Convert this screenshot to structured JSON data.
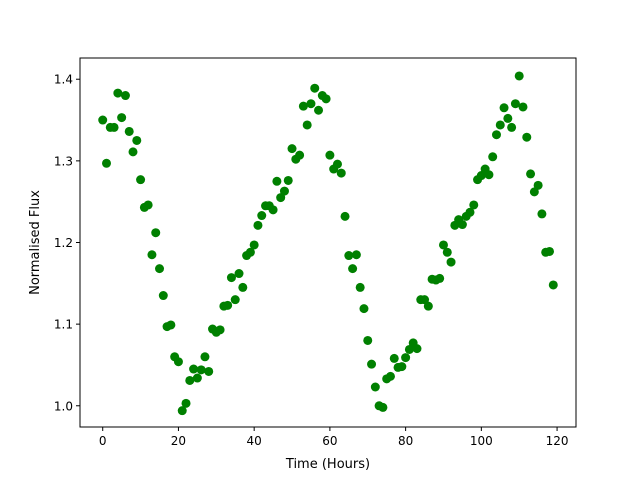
{
  "chart_data": {
    "type": "scatter",
    "title": "",
    "xlabel": "Time (Hours)",
    "ylabel": "Normalised Flux",
    "xlim": [
      -6,
      125
    ],
    "ylim": [
      0.974,
      1.426
    ],
    "xticks": [
      0,
      20,
      40,
      60,
      80,
      100,
      120
    ],
    "xtick_labels": [
      "0",
      "20",
      "40",
      "60",
      "80",
      "100",
      "120"
    ],
    "yticks": [
      1.0,
      1.1,
      1.2,
      1.3,
      1.4
    ],
    "ytick_labels": [
      "1.0",
      "1.1",
      "1.2",
      "1.3",
      "1.4"
    ],
    "grid": false,
    "legend": "none",
    "marker_color": "#008000",
    "series": [
      {
        "x": [
          0,
          1,
          2,
          3,
          4,
          5,
          6,
          7,
          8,
          9,
          10,
          11,
          12,
          13,
          14,
          15,
          16,
          17,
          18,
          19,
          20,
          21,
          22,
          23,
          24,
          25,
          26,
          27,
          28,
          29,
          30,
          31,
          32,
          33,
          34,
          35,
          36,
          37,
          38,
          39,
          40,
          41,
          42,
          43,
          44,
          45,
          46,
          47,
          48,
          49,
          50,
          51,
          52,
          53,
          54,
          55,
          56,
          57,
          58,
          59,
          60,
          61,
          62,
          63,
          64,
          65,
          66,
          67,
          68,
          69,
          70,
          71,
          72,
          73,
          74,
          75,
          76,
          77,
          78,
          79,
          80,
          81,
          82,
          83,
          84,
          85,
          86,
          87,
          88,
          89,
          90,
          91,
          92,
          93,
          94,
          95,
          96,
          97,
          98,
          99,
          100,
          101,
          102,
          103,
          104,
          105,
          106,
          107,
          108,
          109,
          110,
          111,
          112,
          113,
          114,
          115,
          116,
          117,
          118,
          119
        ],
        "y": [
          1.35,
          1.297,
          1.341,
          1.341,
          1.383,
          1.353,
          1.38,
          1.336,
          1.311,
          1.325,
          1.277,
          1.243,
          1.246,
          1.185,
          1.212,
          1.168,
          1.135,
          1.097,
          1.099,
          1.06,
          1.054,
          0.994,
          1.003,
          1.031,
          1.045,
          1.034,
          1.044,
          1.06,
          1.042,
          1.094,
          1.09,
          1.093,
          1.122,
          1.123,
          1.157,
          1.13,
          1.162,
          1.145,
          1.184,
          1.188,
          1.197,
          1.221,
          1.233,
          1.245,
          1.245,
          1.24,
          1.275,
          1.255,
          1.263,
          1.276,
          1.315,
          1.302,
          1.307,
          1.367,
          1.344,
          1.37,
          1.389,
          1.362,
          1.38,
          1.376,
          1.307,
          1.29,
          1.296,
          1.285,
          1.232,
          1.184,
          1.168,
          1.185,
          1.145,
          1.119,
          1.08,
          1.051,
          1.023,
          1.0,
          0.998,
          1.033,
          1.036,
          1.058,
          1.047,
          1.048,
          1.059,
          1.069,
          1.077,
          1.07,
          1.13,
          1.13,
          1.122,
          1.155,
          1.154,
          1.156,
          1.197,
          1.188,
          1.176,
          1.221,
          1.228,
          1.222,
          1.232,
          1.237,
          1.246,
          1.277,
          1.282,
          1.29,
          1.283,
          1.305,
          1.332,
          1.344,
          1.365,
          1.352,
          1.341,
          1.37,
          1.404,
          1.366,
          1.329,
          1.284,
          1.262,
          1.27,
          1.235,
          1.188,
          1.189,
          1.148
        ]
      }
    ]
  }
}
